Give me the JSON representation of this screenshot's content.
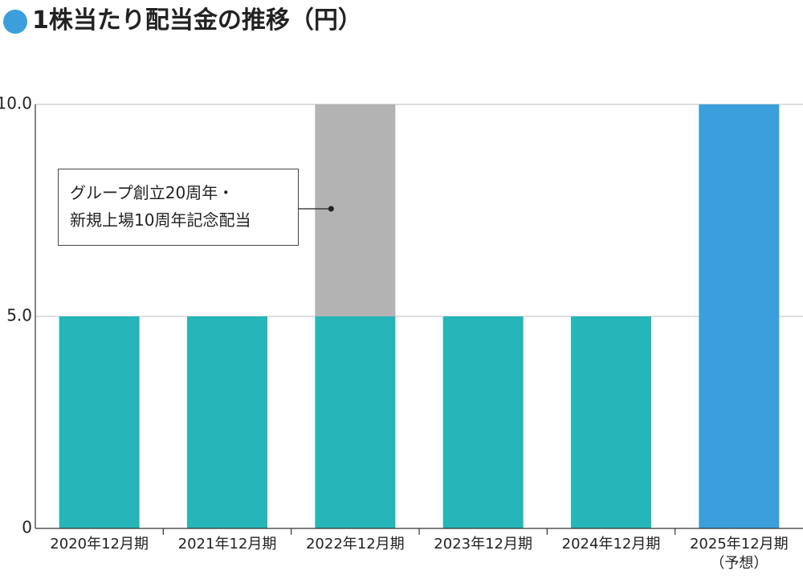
{
  "chart_data": {
    "type": "stacked_bar",
    "title": "1株当たり配当金の推移（円）",
    "categories": [
      "2020年12月期",
      "2021年12月期",
      "2022年12月期",
      "2023年12月期",
      "2024年12月期",
      "2025年12月期\n（予想）"
    ],
    "series": [
      {
        "color": "#26b5b8",
        "values": [
          5,
          5,
          5,
          5,
          5,
          null
        ]
      },
      {
        "color": "#b3b3b3",
        "values": [
          null,
          null,
          5,
          null,
          null,
          null
        ]
      },
      {
        "color": "#3a9fdb",
        "values": [
          null,
          null,
          null,
          null,
          null,
          10
        ]
      }
    ],
    "annotation": "グループ創立20周年・\n新規上場10周年記念配当",
    "ylim": [
      0,
      10
    ],
    "yticks": [
      0,
      {
        "value": 5,
        "label": "5.0"
      },
      {
        "value": 10,
        "label": "10.0"
      }
    ],
    "grid": true
  }
}
